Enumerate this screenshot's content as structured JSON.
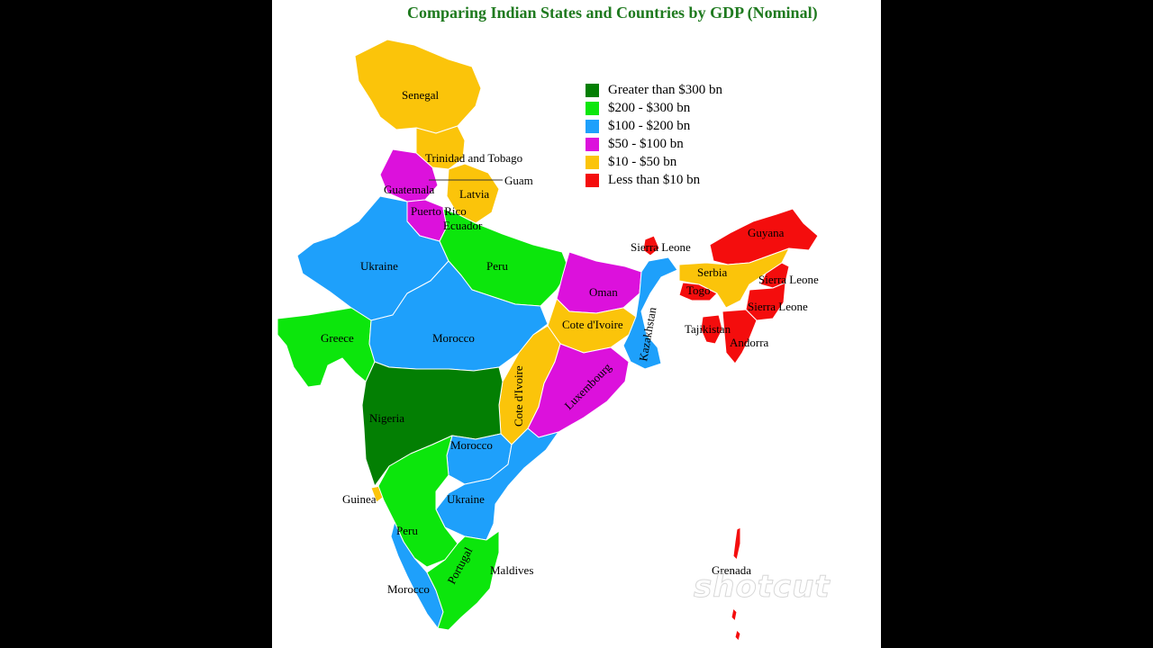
{
  "title": "Comparing Indian States and Countries by GDP (Nominal)",
  "colors": {
    "greater_300": "#037f03",
    "range_200_300": "#0ce60c",
    "range_100_200": "#1ea0fb",
    "range_50_100": "#dc11dc",
    "range_10_50": "#fbc40a",
    "less_10": "#f40d0d"
  },
  "legend": [
    {
      "label": "Greater than $300 bn",
      "color": "#037f03"
    },
    {
      "label": "$200 - $300 bn",
      "color": "#0ce60c"
    },
    {
      "label": "$100 - $200 bn",
      "color": "#1ea0fb"
    },
    {
      "label": "$50 - $100 bn",
      "color": "#dc11dc"
    },
    {
      "label": "$10 - $50 bn",
      "color": "#fbc40a"
    },
    {
      "label": "Less than $10 bn",
      "color": "#f40d0d"
    }
  ],
  "labels": {
    "senegal": "Senegal",
    "trinidad": "Trinidad and Tobago",
    "guam": "Guam",
    "guatemala": "Guatemala",
    "latvia": "Latvia",
    "puerto_rico": "Puerto Rico",
    "ecuador": "Ecuador",
    "ukraine_north": "Ukraine",
    "peru_north": "Peru",
    "sierra_leone_1": "Sierra Leone",
    "guyana": "Guyana",
    "serbia": "Serbia",
    "sierra_leone_2": "Sierra Leone",
    "togo": "Togo",
    "sierra_leone_3": "Sierra Leone",
    "oman": "Oman",
    "tajikistan": "Tajikistan",
    "andorra": "Andorra",
    "greece": "Greece",
    "morocco_central": "Morocco",
    "cote_divoire_1": "Cote d'Ivoire",
    "kazakhstan": "Kazakhstan",
    "luxembourg": "Luxembourg",
    "cote_divoire_2": "Cote d'Ivoire",
    "nigeria": "Nigeria",
    "morocco_south": "Morocco",
    "guinea": "Guinea",
    "ukraine_south": "Ukraine",
    "peru_south": "Peru",
    "portugal": "Portugal",
    "maldives": "Maldives",
    "morocco_tip": "Morocco",
    "grenada": "Grenada"
  },
  "watermark": "shotcut"
}
